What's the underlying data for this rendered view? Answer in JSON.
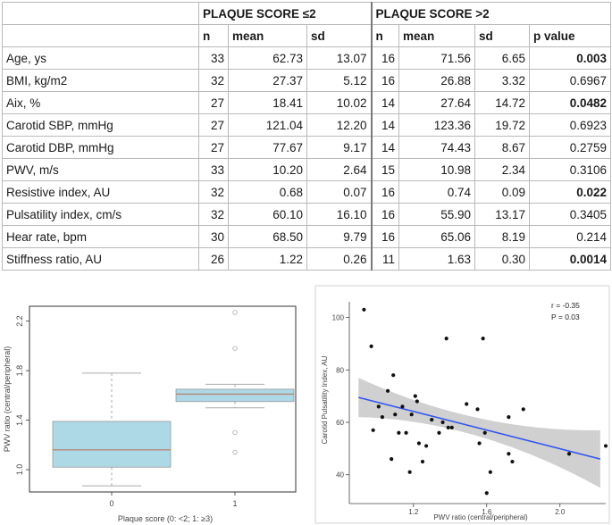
{
  "table": {
    "group1_title": "PLAQUE SCORE ≤2",
    "group2_title": "PLAQUE SCORE >2",
    "col_n": "n",
    "col_mean": "mean",
    "col_sd": "sd",
    "col_p": "p value",
    "rows": [
      {
        "label": "Age, ys",
        "n1": "33",
        "mean1": "62.73",
        "sd1": "13.07",
        "n2": "16",
        "mean2": "71.56",
        "sd2": "6.65",
        "p": "0.003",
        "sig": true
      },
      {
        "label": "BMI, kg/m2",
        "n1": "32",
        "mean1": "27.37",
        "sd1": "5.12",
        "n2": "16",
        "mean2": "26.88",
        "sd2": "3.32",
        "p": "0.6967",
        "sig": false
      },
      {
        "label": "Aix, %",
        "n1": "27",
        "mean1": "18.41",
        "sd1": "10.02",
        "n2": "14",
        "mean2": "27.64",
        "sd2": "14.72",
        "p": "0.0482",
        "sig": true
      },
      {
        "label": "Carotid SBP, mmHg",
        "n1": "27",
        "mean1": "121.04",
        "sd1": "12.20",
        "n2": "14",
        "mean2": "123.36",
        "sd2": "19.72",
        "p": "0.6923",
        "sig": false
      },
      {
        "label": "Carotid DBP, mmHg",
        "n1": "27",
        "mean1": "77.67",
        "sd1": "9.17",
        "n2": "14",
        "mean2": "74.43",
        "sd2": "8.67",
        "p": "0.2759",
        "sig": false
      },
      {
        "label": "PWV, m/s",
        "n1": "33",
        "mean1": "10.20",
        "sd1": "2.64",
        "n2": "15",
        "mean2": "10.98",
        "sd2": "2.34",
        "p": "0.3106",
        "sig": false
      },
      {
        "label": "Resistive index, AU",
        "n1": "32",
        "mean1": "0.68",
        "sd1": "0.07",
        "n2": "16",
        "mean2": "0.74",
        "sd2": "0.09",
        "p": "0.022",
        "sig": true
      },
      {
        "label": "Pulsatility index, cm/s",
        "n1": "32",
        "mean1": "60.10",
        "sd1": "16.10",
        "n2": "16",
        "mean2": "55.90",
        "sd2": "13.17",
        "p": "0.3405",
        "sig": false
      },
      {
        "label": "Hear rate, bpm",
        "n1": "30",
        "mean1": "68.50",
        "sd1": "9.79",
        "n2": "16",
        "mean2": "65.06",
        "sd2": "8.19",
        "p": "0.214",
        "sig": false
      },
      {
        "label": "Stiffness ratio, AU",
        "n1": "26",
        "mean1": "1.22",
        "sd1": "0.26",
        "n2": "11",
        "mean2": "1.63",
        "sd2": "0.30",
        "p": "0.0014",
        "sig": true
      }
    ]
  },
  "chart_data": [
    {
      "type": "box",
      "xlabel": "Plaque score (0: <2; 1: ≥3)",
      "ylabel": "PWV ratio (central/peripheral)",
      "categories": [
        "0",
        "1"
      ],
      "ylim": [
        0.82,
        2.32
      ],
      "yticks": [
        1.0,
        1.4,
        1.8,
        2.2
      ],
      "ytick_labels": [
        "1.0",
        "1.4",
        "1.8",
        "2.2"
      ],
      "boxes": [
        {
          "category": "0",
          "whisker_low": 0.87,
          "q1": 1.02,
          "median": 1.16,
          "q3": 1.39,
          "whisker_high": 1.78,
          "outliers": []
        },
        {
          "category": "1",
          "whisker_low": 1.5,
          "q1": 1.55,
          "median": 1.61,
          "q3": 1.65,
          "whisker_high": 1.69,
          "outliers": [
            2.27,
            1.98,
            1.3,
            1.14
          ]
        }
      ],
      "colors": {
        "box_fill": "#add8e6",
        "box_stroke": "#9a9a9a",
        "median": "#b58a78"
      }
    },
    {
      "type": "scatter",
      "annotation_r": "r = -0.35",
      "annotation_p": "P = 0.03",
      "xlabel": "PWV ratio (central/peripheral)",
      "ylabel": "Carotid Pulsatility Index, AU",
      "xlim": [
        0.85,
        2.25
      ],
      "ylim": [
        29,
        106
      ],
      "xticks": [
        1.2,
        1.6,
        2.0
      ],
      "xtick_labels": [
        "1.2",
        "1.6",
        "2.0"
      ],
      "yticks": [
        40,
        60,
        80,
        100
      ],
      "ytick_labels": [
        "40",
        "60",
        "80",
        "100"
      ],
      "points": [
        [
          0.93,
          103
        ],
        [
          0.97,
          89
        ],
        [
          0.98,
          57
        ],
        [
          1.01,
          66
        ],
        [
          1.03,
          62
        ],
        [
          1.06,
          72
        ],
        [
          1.08,
          46
        ],
        [
          1.09,
          78
        ],
        [
          1.1,
          63
        ],
        [
          1.12,
          56
        ],
        [
          1.14,
          66
        ],
        [
          1.16,
          56
        ],
        [
          1.18,
          41
        ],
        [
          1.19,
          63
        ],
        [
          1.21,
          70
        ],
        [
          1.22,
          68
        ],
        [
          1.23,
          52
        ],
        [
          1.25,
          45
        ],
        [
          1.27,
          51
        ],
        [
          1.3,
          61
        ],
        [
          1.34,
          56
        ],
        [
          1.36,
          60
        ],
        [
          1.38,
          92
        ],
        [
          1.39,
          58
        ],
        [
          1.41,
          58
        ],
        [
          1.49,
          67
        ],
        [
          1.55,
          65
        ],
        [
          1.56,
          52
        ],
        [
          1.58,
          92
        ],
        [
          1.59,
          56
        ],
        [
          1.6,
          33
        ],
        [
          1.62,
          41
        ],
        [
          1.72,
          62
        ],
        [
          1.72,
          48
        ],
        [
          1.74,
          45
        ],
        [
          1.8,
          65
        ],
        [
          2.05,
          48
        ],
        [
          2.25,
          51
        ]
      ],
      "fit_line": {
        "x0": 0.9,
        "y0": 69.5,
        "x1": 2.22,
        "y1": 46
      },
      "band": {
        "x0": 0.9,
        "lower0": 62,
        "upper0": 77,
        "xm": 1.55,
        "lowerm": 54.7,
        "upperm": 61.6,
        "x1": 2.22,
        "lower1": 35,
        "upper1": 57
      },
      "colors": {
        "fit": "#3355ee",
        "band": "#c8c8c8",
        "point": "#111111"
      }
    }
  ]
}
